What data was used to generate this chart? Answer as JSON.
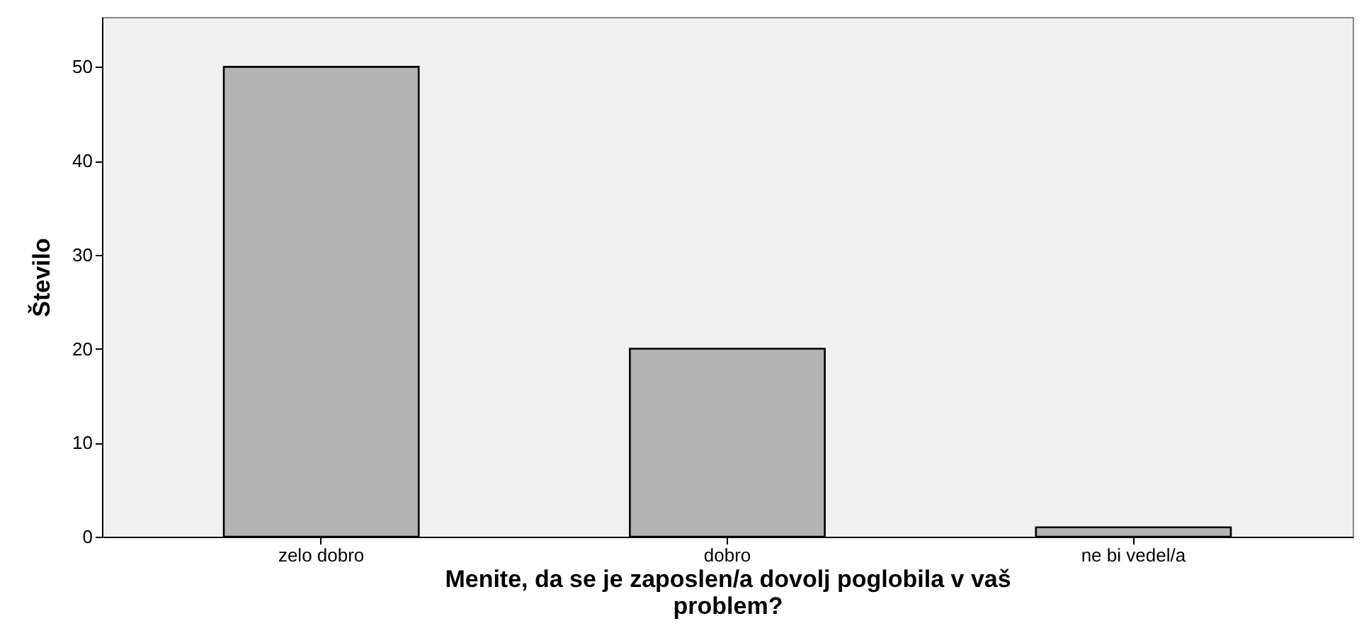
{
  "chart_data": {
    "type": "bar",
    "xlabel": "Menite, da se je zaposlen/a dovolj poglobila v vaš problem?",
    "ylabel": "Število",
    "categories": [
      "zelo dobro",
      "dobro",
      "ne bi vedel/a"
    ],
    "values": [
      50,
      20,
      1
    ],
    "color": "#b3b3b3",
    "ylim": [
      0,
      55.3
    ],
    "yticks": [
      0,
      10,
      20,
      30,
      40,
      50
    ],
    "grid": false
  }
}
